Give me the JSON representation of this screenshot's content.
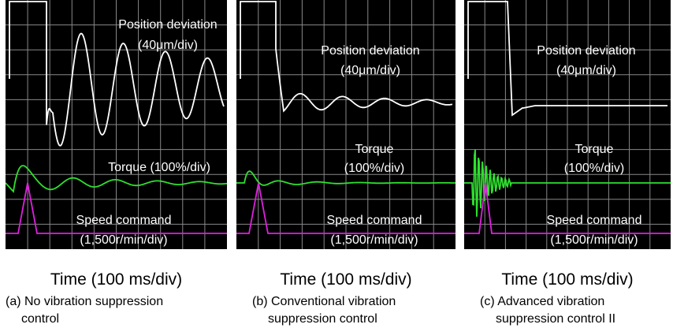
{
  "panels": [
    {
      "position": [
        "Position deviation",
        "(40μm/div)"
      ],
      "torque": [
        "Torque (100%/div)"
      ],
      "speed": [
        "Speed command",
        "(1,500r/min/div)"
      ],
      "time_axis": "Time (100 ms/div)",
      "caption": [
        "(a) No vibration suppression",
        "control"
      ]
    },
    {
      "position": [
        "Position deviation",
        "(40μm/div)"
      ],
      "torque": [
        "Torque",
        "(100%/div)"
      ],
      "speed": [
        "Speed command",
        "(1,500r/min/div)"
      ],
      "time_axis": "Time (100 ms/div)",
      "caption": [
        "(b) Conventional vibration",
        "suppression control"
      ]
    },
    {
      "position": [
        "Position deviation",
        "(40μm/div)"
      ],
      "torque": [
        "Torque",
        "(100%/div)"
      ],
      "speed": [
        "Speed command",
        "(1,500r/min/div)"
      ],
      "time_axis": "Time (100 ms/div)",
      "caption": [
        "(c) Advanced vibration",
        "suppression control II"
      ]
    }
  ]
}
